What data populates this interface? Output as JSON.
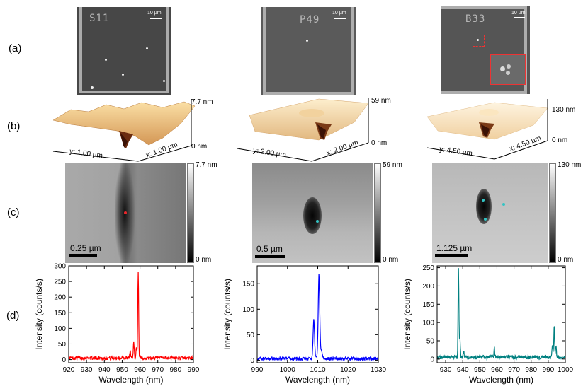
{
  "row_labels": [
    "(a)",
    "(b)",
    "(c)",
    "(d)"
  ],
  "panel_a": [
    {
      "label": "S11",
      "scale": "10 µm"
    },
    {
      "label": "P49",
      "scale": "10 µm"
    },
    {
      "label": "B33",
      "scale": "10 µm"
    }
  ],
  "panel_b": [
    {
      "zmax": "7.7 nm",
      "zmin": "0 nm",
      "y_label": "y: 1.00 µm",
      "x_label": "x: 1.00 µm"
    },
    {
      "zmax": "59 nm",
      "zmin": "0 nm",
      "y_label": "y: 2.00 µm",
      "x_label": "x: 2.00 µm"
    },
    {
      "zmax": "130 nm",
      "zmin": "0 nm",
      "y_label": "y: 4.50 µm",
      "x_label": "x: 4.50 µm"
    }
  ],
  "panel_c": [
    {
      "scale": "0.25 µm",
      "cb_max": "7.7 nm",
      "cb_min": "0 nm",
      "marker_color": "#e8262b"
    },
    {
      "scale": "0.5 µm",
      "cb_max": "59 nm",
      "cb_min": "0 nm",
      "marker_color": "#33c4c4"
    },
    {
      "scale": "1.125 µm",
      "cb_max": "130 nm",
      "cb_min": "0 nm",
      "marker_color": "#33c4c4"
    }
  ],
  "chart_data": [
    {
      "type": "line",
      "color": "#ff0000",
      "xlabel": "Wavelength (nm)",
      "ylabel": "Intensity (counts/s)",
      "xlim": [
        920,
        990
      ],
      "ylim": [
        -10,
        300
      ],
      "xticks": [
        920,
        930,
        940,
        950,
        960,
        970,
        980,
        990
      ],
      "yticks": [
        0,
        50,
        100,
        150,
        200,
        250,
        300
      ],
      "baseline": 5,
      "peaks": [
        {
          "x": 954.5,
          "y": 22
        },
        {
          "x": 956.5,
          "y": 55
        },
        {
          "x": 958.0,
          "y": 35
        },
        {
          "x": 959.0,
          "y": 275
        }
      ]
    },
    {
      "type": "line",
      "color": "#0000ff",
      "xlabel": "Wavelength (nm)",
      "ylabel": "Intensity (counts/s)",
      "xlim": [
        990,
        1030
      ],
      "ylim": [
        -5,
        185
      ],
      "xticks": [
        990,
        1000,
        1010,
        1020,
        1030
      ],
      "yticks": [
        0,
        50,
        100,
        150
      ],
      "baseline": 3,
      "peaks": [
        {
          "x": 1008.7,
          "y": 77
        },
        {
          "x": 1010.4,
          "y": 165
        },
        {
          "x": 1011.2,
          "y": 18
        }
      ]
    },
    {
      "type": "line",
      "color": "#008080",
      "xlabel": "Wavelength (nm)",
      "ylabel": "Intensity (counts/s)",
      "xlim": [
        925,
        1000
      ],
      "ylim": [
        -10,
        255
      ],
      "xticks": [
        930,
        940,
        950,
        960,
        970,
        980,
        990,
        1000
      ],
      "yticks": [
        0,
        50,
        100,
        150,
        200,
        250
      ],
      "baseline": 5,
      "peaks": [
        {
          "x": 937.5,
          "y": 243
        },
        {
          "x": 938.3,
          "y": 55
        },
        {
          "x": 940.5,
          "y": 18
        },
        {
          "x": 958.5,
          "y": 25
        },
        {
          "x": 992.5,
          "y": 38
        },
        {
          "x": 993.5,
          "y": 88
        },
        {
          "x": 994.5,
          "y": 30
        }
      ]
    }
  ]
}
